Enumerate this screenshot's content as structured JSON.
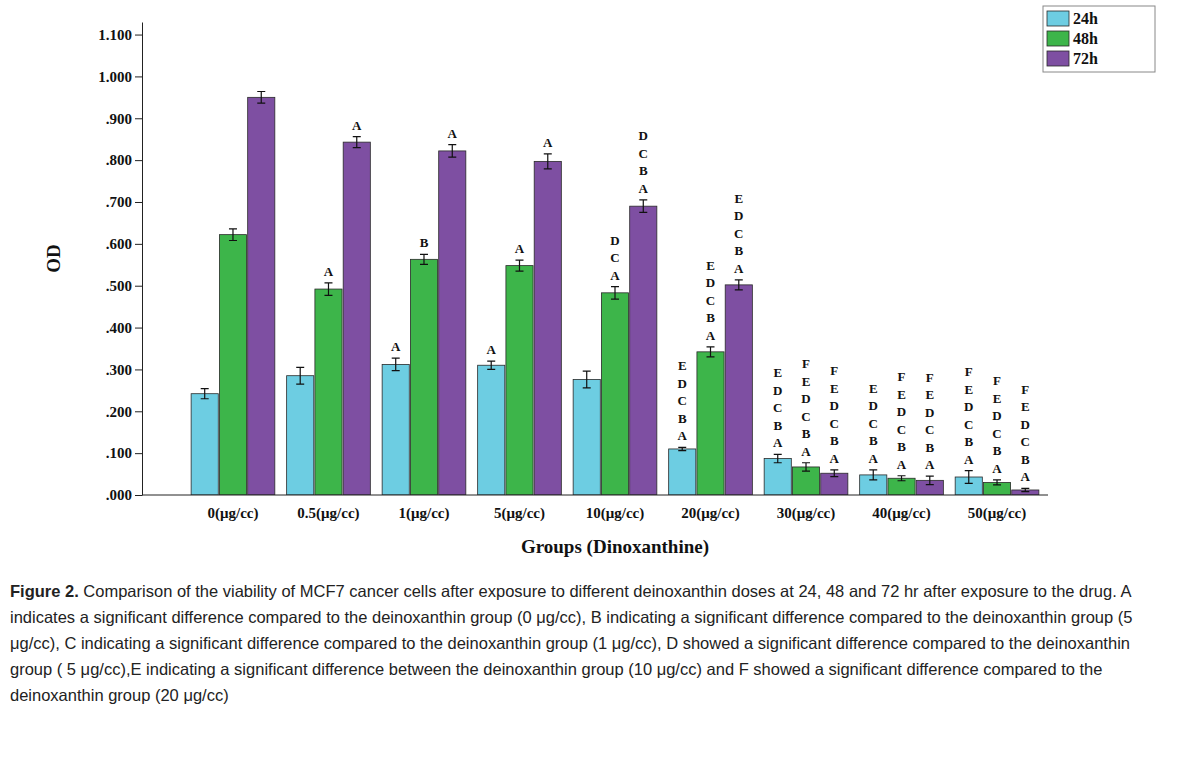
{
  "chart_data": {
    "type": "bar",
    "x_label": "Groups (Dinoxanthine)",
    "y_label": "OD",
    "categories": [
      "0(μg/cc)",
      "0.5(μg/cc)",
      "1(μg/cc)",
      "5(μg/cc)",
      "10(μg/cc)",
      "20(μg/cc)",
      "30(μg/cc)",
      "40(μg/cc)",
      "50(μg/cc)"
    ],
    "series": [
      {
        "name": "24h",
        "color": "#6dcde2",
        "values": [
          0.242,
          0.285,
          0.312,
          0.31,
          0.276,
          0.11,
          0.087,
          0.048,
          0.043
        ],
        "errors": [
          0.012,
          0.02,
          0.015,
          0.01,
          0.02,
          0.004,
          0.01,
          0.012,
          0.015
        ],
        "significance": [
          [],
          [],
          [
            "A"
          ],
          [
            "A"
          ],
          [],
          [
            "E",
            "D",
            "C",
            "B",
            "A"
          ],
          [
            "E",
            "D",
            "C",
            "B",
            "A"
          ],
          [
            "E",
            "D",
            "C",
            "B",
            "A"
          ],
          [
            "F",
            "E",
            "D",
            "C",
            "B",
            "A"
          ]
        ]
      },
      {
        "name": "48h",
        "color": "#3db54a",
        "values": [
          0.622,
          0.492,
          0.563,
          0.548,
          0.483,
          0.342,
          0.067,
          0.04,
          0.03
        ],
        "errors": [
          0.014,
          0.015,
          0.012,
          0.013,
          0.015,
          0.012,
          0.01,
          0.006,
          0.006
        ],
        "significance": [
          [],
          [
            "A"
          ],
          [
            "B"
          ],
          [
            "A"
          ],
          [
            "D",
            "C",
            "A"
          ],
          [
            "E",
            "D",
            "C",
            "B",
            "A"
          ],
          [
            "F",
            "E",
            "D",
            "C",
            "B",
            "A"
          ],
          [
            "F",
            "E",
            "D",
            "C",
            "B",
            "A"
          ],
          [
            "F",
            "E",
            "D",
            "C",
            "B",
            "A"
          ]
        ]
      },
      {
        "name": "72h",
        "color": "#7e4fa2",
        "values": [
          0.95,
          0.843,
          0.822,
          0.797,
          0.69,
          0.502,
          0.052,
          0.035,
          0.012
        ],
        "errors": [
          0.014,
          0.013,
          0.015,
          0.018,
          0.015,
          0.012,
          0.008,
          0.01,
          0.004
        ],
        "significance": [
          [],
          [
            "A"
          ],
          [
            "A"
          ],
          [
            "A"
          ],
          [
            "D",
            "C",
            "B",
            "A"
          ],
          [
            "E",
            "D",
            "C",
            "B",
            "A"
          ],
          [
            "F",
            "E",
            "D",
            "C",
            "B",
            "A"
          ],
          [
            "F",
            "E",
            "D",
            "C",
            "B",
            "A"
          ],
          [
            "F",
            "E",
            "D",
            "C",
            "B",
            "A"
          ]
        ]
      }
    ],
    "ylim": [
      0,
      1.13
    ],
    "yticks": [
      {
        "value": 0,
        "label": ".000"
      },
      {
        "value": 0.1,
        "label": ".100"
      },
      {
        "value": 0.2,
        "label": ".200"
      },
      {
        "value": 0.3,
        "label": ".300"
      },
      {
        "value": 0.4,
        "label": ".400"
      },
      {
        "value": 0.5,
        "label": ".500"
      },
      {
        "value": 0.6,
        "label": ".600"
      },
      {
        "value": 0.7,
        "label": ".700"
      },
      {
        "value": 0.8,
        "label": ".800"
      },
      {
        "value": 0.9,
        "label": ".900"
      },
      {
        "value": 1,
        "label": "1.000"
      },
      {
        "value": 1.1,
        "label": "1.100"
      }
    ],
    "grid": false,
    "legend": "top-right"
  },
  "caption": {
    "label": "Figure 2.",
    "text": "Comparison of the viability of MCF7 cancer cells after exposure to different deinoxanthin doses at 24, 48 and 72 hr after exposure to the drug. A indicates a significant difference compared to the deinoxanthin group (0 μg/cc), B indicating a significant difference compared to the deinoxanthin group (5 μg/cc), C indicating a significant difference compared to the deinoxanthin group (1 μg/cc), D showed a significant difference compared to the deinoxanthin group ( 5 μg/cc),E indicating a significant difference between the deinoxanthin group (10 μg/cc) and F showed a significant difference compared to the deinoxanthin group (20 μg/cc)"
  }
}
